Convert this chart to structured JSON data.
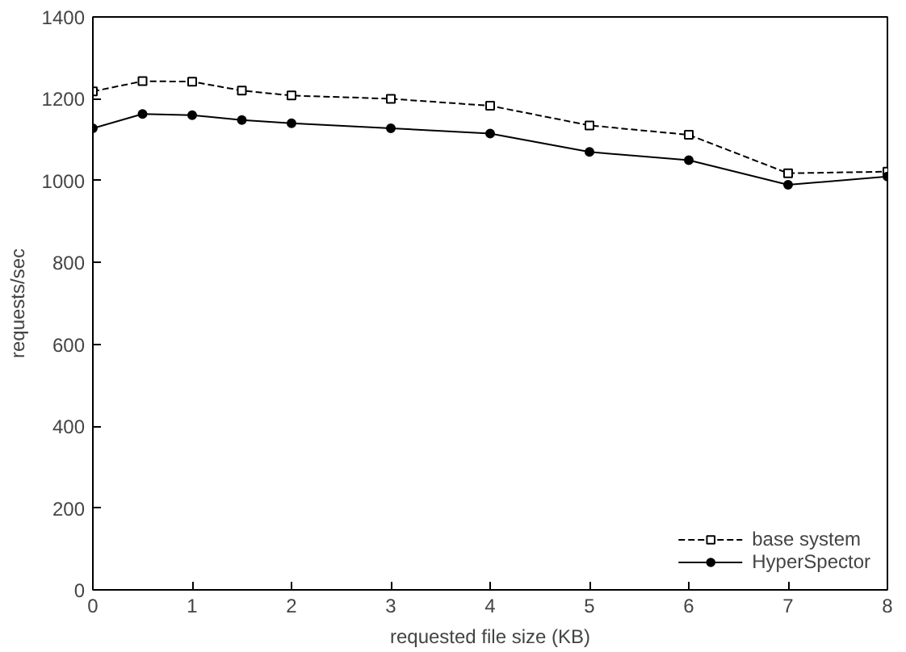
{
  "chart_data": {
    "type": "line",
    "xlabel": "requested file size (KB)",
    "ylabel": "requests/sec",
    "x": [
      0,
      0.5,
      1,
      1.5,
      2,
      3,
      4,
      5,
      6,
      7,
      8
    ],
    "series": [
      {
        "name": "base system",
        "color": "#000000",
        "values": [
          1218,
          1243,
          1242,
          1220,
          1208,
          1200,
          1183,
          1135,
          1112,
          1018,
          1022
        ],
        "marker": "square",
        "line_style": "dashed"
      },
      {
        "name": "HyperSpector",
        "color": "#000000",
        "values": [
          1128,
          1163,
          1160,
          1148,
          1140,
          1128,
          1115,
          1070,
          1050,
          990,
          1010
        ],
        "marker": "circle",
        "line_style": "solid"
      }
    ],
    "xlim": [
      0,
      8
    ],
    "xticks": [
      0,
      1,
      2,
      3,
      4,
      5,
      6,
      7,
      8
    ],
    "ylim": [
      0,
      1400
    ],
    "yticks": [
      0,
      200,
      400,
      600,
      800,
      1000,
      1200,
      1400
    ],
    "grid": false,
    "legend": "bottom right"
  }
}
